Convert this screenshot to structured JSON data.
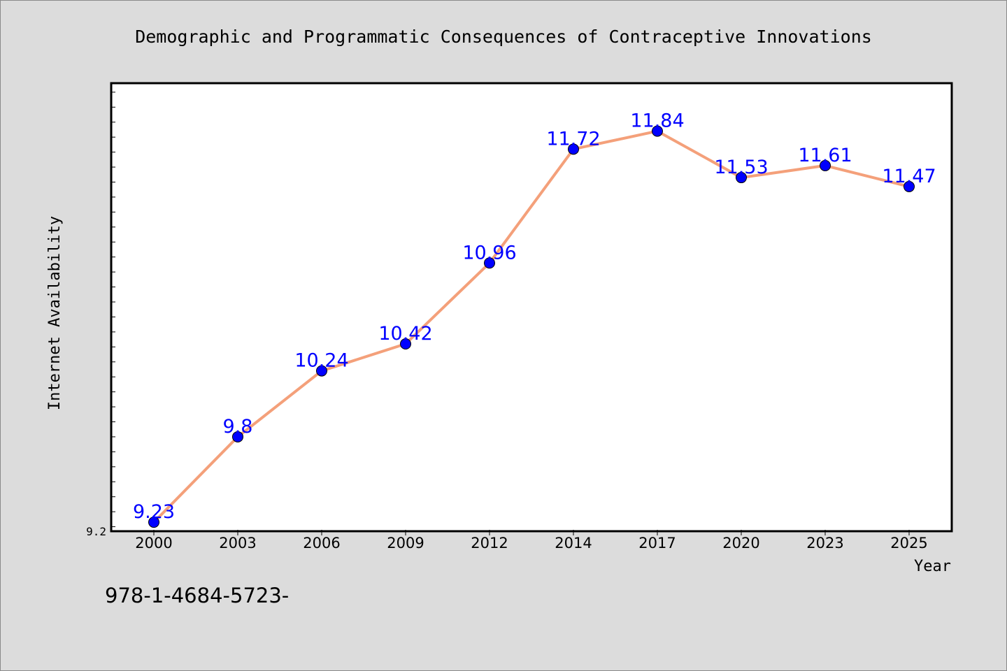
{
  "chart_data": {
    "type": "line",
    "title": "Demographic and Programmatic Consequences of Contraceptive Innovations",
    "xlabel": "Year",
    "ylabel": "Internet Availability",
    "categories": [
      "2000",
      "2003",
      "2006",
      "2009",
      "2012",
      "2014",
      "2017",
      "2020",
      "2023",
      "2025"
    ],
    "series": [
      {
        "values": [
          9.23,
          9.8,
          10.24,
          10.42,
          10.96,
          11.72,
          11.84,
          11.53,
          11.61,
          11.47
        ],
        "data_labels": [
          "9.23",
          "9.8",
          "10.24",
          "10.42",
          "10.96",
          "11.72",
          "11.84",
          "11.53",
          "11.61",
          "11.47"
        ]
      }
    ],
    "ylim": [
      9.17,
      12.16
    ],
    "y_tick_labels": [
      "9.2"
    ],
    "grid": false,
    "legend": "none",
    "colors": {
      "line": "#f4a07a",
      "marker": "#0000ff",
      "data_label": "#0000ff",
      "background": "#dcdcdc",
      "plot_background": "#ffffff"
    }
  },
  "footer": {
    "isbn": "978-1-4684-5723-"
  }
}
